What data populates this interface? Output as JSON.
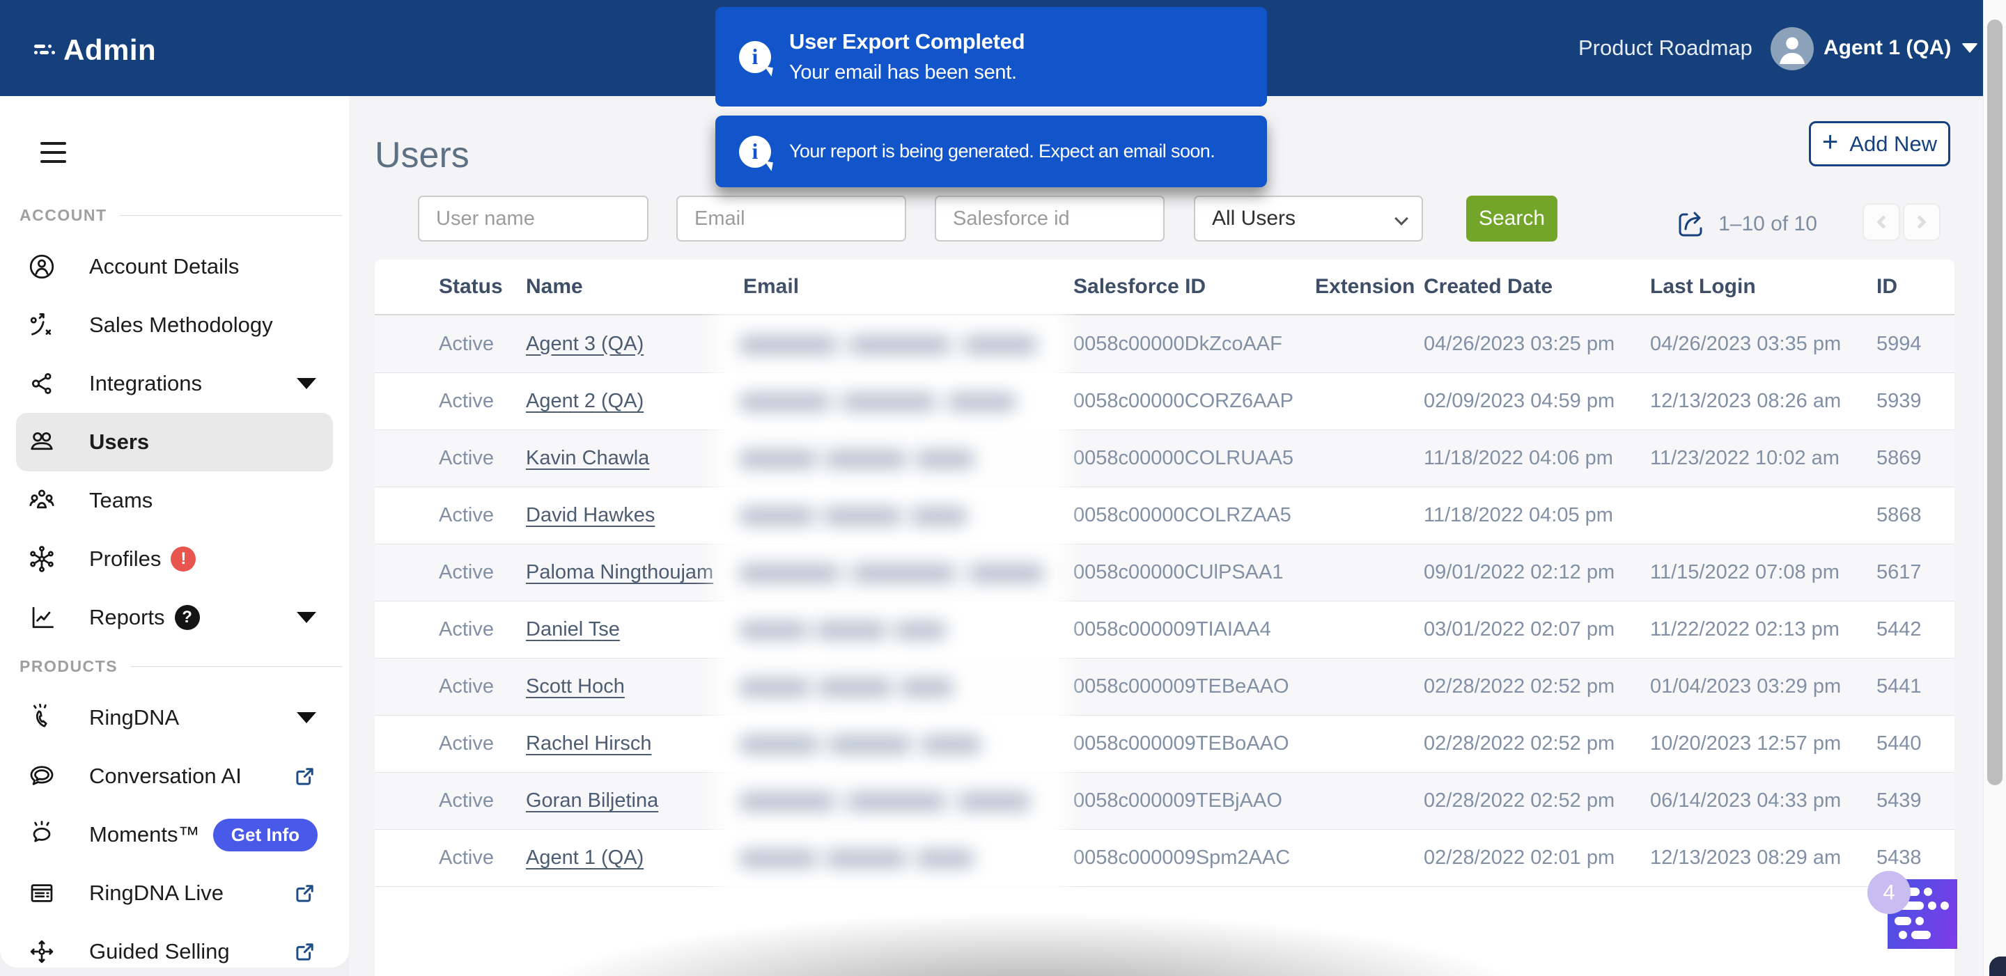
{
  "header": {
    "app_title": "Admin",
    "product_roadmap": "Product Roadmap",
    "user_menu": "Agent 1 (QA)"
  },
  "toasts": [
    {
      "title": "User Export Completed",
      "message": "Your email has been sent."
    },
    {
      "message": "Your report is being generated. Expect an email soon."
    }
  ],
  "sidebar": {
    "sections": [
      {
        "label": "ACCOUNT",
        "items": [
          {
            "label": "Account Details",
            "icon": "account-details-icon"
          },
          {
            "label": "Sales Methodology",
            "icon": "sales-methodology-icon"
          },
          {
            "label": "Integrations",
            "icon": "integrations-icon",
            "caret": true
          },
          {
            "label": "Users",
            "icon": "users-icon",
            "selected": true
          },
          {
            "label": "Teams",
            "icon": "teams-icon"
          },
          {
            "label": "Profiles",
            "icon": "profiles-icon",
            "badge": "!",
            "badge_color": "#e8544e"
          },
          {
            "label": "Reports",
            "icon": "reports-icon",
            "badge": "?",
            "badge_color": "#141414",
            "caret": true
          }
        ]
      },
      {
        "label": "PRODUCTS",
        "items": [
          {
            "label": "RingDNA",
            "icon": "ringdna-icon",
            "caret": true
          },
          {
            "label": "Conversation AI",
            "icon": "conversation-ai-icon",
            "external": true
          },
          {
            "label": "Moments™",
            "icon": "moments-icon",
            "pill": "Get Info"
          },
          {
            "label": "RingDNA Live",
            "icon": "ringdna-live-icon",
            "external": true
          },
          {
            "label": "Guided Selling",
            "icon": "guided-selling-icon",
            "external": true
          }
        ]
      }
    ]
  },
  "page": {
    "title": "Users",
    "add_new_label": "Add New"
  },
  "filters": {
    "username_placeholder": "User name",
    "email_placeholder": "Email",
    "salesforce_placeholder": "Salesforce id",
    "user_filter_value": "All Users",
    "search_label": "Search",
    "range_label": "1–10 of 10"
  },
  "table": {
    "columns": [
      "Status",
      "Name",
      "Email",
      "Salesforce ID",
      "Extension",
      "Created Date",
      "Last Login",
      "ID"
    ],
    "rows": [
      {
        "status": "Active",
        "name": "Agent 3 (QA)",
        "email_redacted": true,
        "email_blur_width": 430,
        "salesforce_id": "0058c00000DkZcoAAF",
        "extension": "",
        "created_date": "04/26/2023 03:25 pm",
        "last_login": "04/26/2023 03:35 pm",
        "id": "5994"
      },
      {
        "status": "Active",
        "name": "Agent 2 (QA)",
        "email_redacted": true,
        "email_blur_width": 400,
        "salesforce_id": "0058c00000CORZ6AAP",
        "extension": "",
        "created_date": "02/09/2023 04:59 pm",
        "last_login": "12/13/2023 08:26 am",
        "id": "5939"
      },
      {
        "status": "Active",
        "name": "Kavin Chawla",
        "email_redacted": true,
        "email_blur_width": 340,
        "salesforce_id": "0058c00000COLRUAA5",
        "extension": "",
        "created_date": "11/18/2022 04:06 pm",
        "last_login": "11/23/2022 10:02 am",
        "id": "5869"
      },
      {
        "status": "Active",
        "name": "David Hawkes",
        "email_redacted": true,
        "email_blur_width": 330,
        "salesforce_id": "0058c00000COLRZAA5",
        "extension": "",
        "created_date": "11/18/2022 04:05 pm",
        "last_login": "",
        "id": "5868"
      },
      {
        "status": "Active",
        "name": "Paloma Ningthoujam",
        "email_redacted": true,
        "email_blur_width": 440,
        "salesforce_id": "0058c00000CUlPSAA1",
        "extension": "",
        "created_date": "09/01/2022 02:12 pm",
        "last_login": "11/15/2022 07:08 pm",
        "id": "5617"
      },
      {
        "status": "Active",
        "name": "Daniel Tse",
        "email_redacted": true,
        "email_blur_width": 300,
        "salesforce_id": "0058c000009TIAIAA4",
        "extension": "",
        "created_date": "03/01/2022 02:07 pm",
        "last_login": "11/22/2022 02:13 pm",
        "id": "5442"
      },
      {
        "status": "Active",
        "name": "Scott Hoch",
        "email_redacted": true,
        "email_blur_width": 310,
        "salesforce_id": "0058c000009TEBeAAO",
        "extension": "",
        "created_date": "02/28/2022 02:52 pm",
        "last_login": "01/04/2023 03:29 pm",
        "id": "5441"
      },
      {
        "status": "Active",
        "name": "Rachel Hirsch",
        "email_redacted": true,
        "email_blur_width": 350,
        "salesforce_id": "0058c000009TEBoAAO",
        "extension": "",
        "created_date": "02/28/2022 02:52 pm",
        "last_login": "10/20/2023 12:57 pm",
        "id": "5440"
      },
      {
        "status": "Active",
        "name": "Goran Biljetina",
        "email_redacted": true,
        "email_blur_width": 420,
        "salesforce_id": "0058c000009TEBjAAO",
        "extension": "",
        "created_date": "02/28/2022 02:52 pm",
        "last_login": "06/14/2023 04:33 pm",
        "id": "5439"
      },
      {
        "status": "Active",
        "name": "Agent 1 (QA)",
        "email_redacted": true,
        "email_blur_width": 340,
        "salesforce_id": "0058c000009Spm2AAC",
        "extension": "",
        "created_date": "02/28/2022 02:01 pm",
        "last_login": "12/13/2023 08:29 am",
        "id": "5438"
      }
    ]
  },
  "chat_widget": {
    "unread_count": "4"
  },
  "colors": {
    "topbar": "#15407c",
    "toast": "#1254c9",
    "search_button": "#73a52b",
    "add_new": "#15417e",
    "page_bg": "#f4f4f6",
    "title_text": "#5e7083",
    "table_header_text": "#3d4e66",
    "cell_text": "#8190a5",
    "get_info_pill": "#4a5ae8",
    "profiles_badge": "#e8544e",
    "chat_gradient_start": "#4553e3",
    "chat_gradient_end": "#7f3be7"
  }
}
